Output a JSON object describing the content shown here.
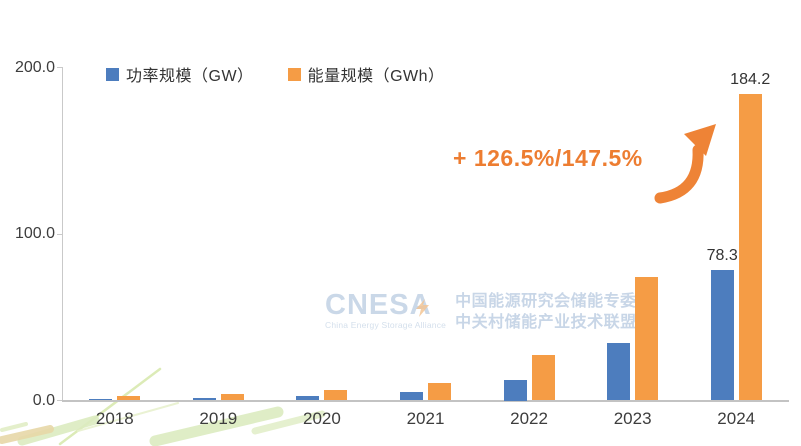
{
  "chart_data": {
    "type": "bar",
    "title": "",
    "categories": [
      "2018",
      "2019",
      "2020",
      "2021",
      "2022",
      "2023",
      "2024"
    ],
    "series": [
      {
        "name": "功率规模（GW）",
        "color": "#4d7dbe",
        "values": [
          1.0,
          1.7,
          3.0,
          5.0,
          12.5,
          34.5,
          78.3
        ],
        "value_labels": [
          "",
          "",
          "",
          "",
          "",
          "",
          "78.3"
        ]
      },
      {
        "name": "能量规模（GWh）",
        "color": "#f59c45",
        "values": [
          2.5,
          4.0,
          6.5,
          10.5,
          27.5,
          74.4,
          184.2
        ],
        "value_labels": [
          "",
          "",
          "",
          "",
          "",
          "",
          "184.2"
        ]
      }
    ],
    "ylim": [
      0,
      200
    ],
    "yticks": [
      {
        "value": 0,
        "label": "0.0"
      },
      {
        "value": 100,
        "label": "100.0"
      },
      {
        "value": 200,
        "label": "200.0"
      }
    ],
    "legend_position": "top",
    "grid": false
  },
  "annotation": {
    "text": "+ 126.5%/147.5%",
    "color": "#ed7d31",
    "arrow": "curved-up-right"
  },
  "watermark": {
    "logo": "CNESA",
    "logo_subtitle": "China Energy Storage Alliance",
    "org_line1": "中国能源研究会储能专委会",
    "org_line2": "中关村储能产业技术联盟"
  },
  "colors": {
    "power_bar": "#4d7dbe",
    "energy_bar": "#f59c45",
    "annotation_orange": "#ed7d31",
    "arrow_orange": "#ee8336",
    "watermark_blue": "#c7d5e6",
    "axis_gray": "#c9c9c9",
    "deco_green": "#dcecc0",
    "deco_tan": "#e7d8a8"
  }
}
